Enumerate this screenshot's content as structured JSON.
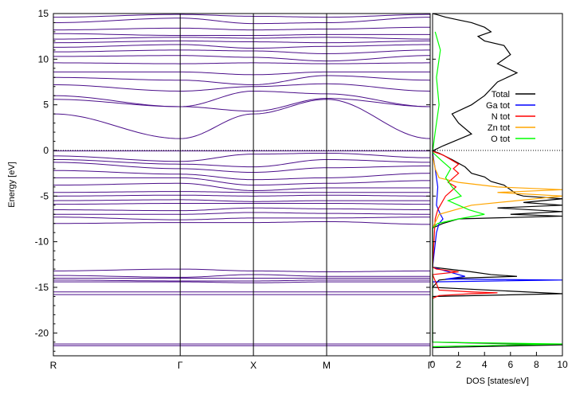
{
  "chart_data": [
    {
      "type": "line",
      "ylabel": "Energy [eV]",
      "xlabel": "",
      "ylim": [
        -22.5,
        15
      ],
      "yticks": [
        15,
        10,
        5,
        0,
        -5,
        -10,
        -15,
        -20
      ],
      "kpoints": [
        {
          "label": "R",
          "x": 0
        },
        {
          "label": "Γ",
          "x": 1.732
        },
        {
          "label": "X",
          "x": 2.732
        },
        {
          "label": "M",
          "x": 3.732
        },
        {
          "label": "Γ",
          "x": 5.146
        }
      ],
      "fermi_level": 0,
      "fermi_line_style": "dotted",
      "band_color": "#4b0f8a",
      "grid": false,
      "series": [
        {
          "x": [
            0,
            1.732,
            2.732,
            3.732,
            5.146
          ],
          "values": [
            -0.05,
            -0.05,
            -0.05,
            -0.05,
            -0.05
          ]
        },
        {
          "x": [
            0,
            1.732,
            2.732,
            3.732,
            5.146
          ],
          "values": [
            -0.6,
            -1.2,
            -0.4,
            -0.3,
            -0.8
          ]
        },
        {
          "x": [
            0,
            1.732,
            2.732,
            3.732,
            5.146
          ],
          "values": [
            -1.0,
            -1.5,
            -1.8,
            -1.0,
            -1.3
          ]
        },
        {
          "x": [
            0,
            1.732,
            2.732,
            3.732,
            5.146
          ],
          "values": [
            -1.3,
            -2.0,
            -2.4,
            -1.9,
            -1.7
          ]
        },
        {
          "x": [
            0,
            1.732,
            2.732,
            3.732,
            5.146
          ],
          "values": [
            -2.2,
            -2.6,
            -3.2,
            -3.0,
            -2.5
          ]
        },
        {
          "x": [
            0,
            1.732,
            2.732,
            3.732,
            5.146
          ],
          "values": [
            -3.0,
            -3.0,
            -3.8,
            -3.6,
            -3.3
          ]
        },
        {
          "x": [
            0,
            1.732,
            2.732,
            3.732,
            5.146
          ],
          "values": [
            -3.8,
            -3.6,
            -4.4,
            -4.1,
            -4.1
          ]
        },
        {
          "x": [
            0,
            1.732,
            2.732,
            3.732,
            5.146
          ],
          "values": [
            -4.6,
            -4.5,
            -4.6,
            -4.6,
            -4.6
          ]
        },
        {
          "x": [
            0,
            1.732,
            2.732,
            3.732,
            5.146
          ],
          "values": [
            -5.0,
            -4.9,
            -5.0,
            -4.9,
            -5.0
          ]
        },
        {
          "x": [
            0,
            1.732,
            2.732,
            3.732,
            5.146
          ],
          "values": [
            -5.5,
            -5.4,
            -5.6,
            -5.5,
            -5.5
          ]
        },
        {
          "x": [
            0,
            1.732,
            2.732,
            3.732,
            5.146
          ],
          "values": [
            -5.9,
            -5.8,
            -5.8,
            -5.8,
            -5.9
          ]
        },
        {
          "x": [
            0,
            1.732,
            2.732,
            3.732,
            5.146
          ],
          "values": [
            -6.5,
            -6.6,
            -6.3,
            -6.4,
            -6.5
          ]
        },
        {
          "x": [
            0,
            1.732,
            2.732,
            3.732,
            5.146
          ],
          "values": [
            -7.0,
            -7.0,
            -6.8,
            -6.9,
            -7.0
          ]
        },
        {
          "x": [
            0,
            1.732,
            2.732,
            3.732,
            5.146
          ],
          "values": [
            -7.3,
            -7.6,
            -7.4,
            -7.4,
            -7.3
          ]
        },
        {
          "x": [
            0,
            1.732,
            2.732,
            3.732,
            5.146
          ],
          "values": [
            -8.0,
            -7.9,
            -7.9,
            -7.8,
            -8.1
          ]
        },
        {
          "x": [
            0,
            1.732,
            2.732,
            3.732,
            5.146
          ],
          "values": [
            -13.2,
            -13.0,
            -13.2,
            -13.3,
            -13.2
          ]
        },
        {
          "x": [
            0,
            1.732,
            2.732,
            3.732,
            5.146
          ],
          "values": [
            -13.7,
            -13.9,
            -13.6,
            -13.8,
            -13.8
          ]
        },
        {
          "x": [
            0,
            1.732,
            2.732,
            3.732,
            5.146
          ],
          "values": [
            -14.0,
            -14.0,
            -14.0,
            -14.0,
            -14.0
          ]
        },
        {
          "x": [
            0,
            1.732,
            2.732,
            3.732,
            5.146
          ],
          "values": [
            -14.2,
            -14.3,
            -14.3,
            -14.2,
            -14.2
          ]
        },
        {
          "x": [
            0,
            1.732,
            2.732,
            3.732,
            5.146
          ],
          "values": [
            -14.4,
            -14.4,
            -14.5,
            -14.4,
            -14.4
          ]
        },
        {
          "x": [
            0,
            1.732,
            2.732,
            3.732,
            5.146
          ],
          "values": [
            -15.5,
            -15.5,
            -15.5,
            -15.5,
            -15.5
          ]
        },
        {
          "x": [
            0,
            1.732,
            2.732,
            3.732,
            5.146
          ],
          "values": [
            -15.8,
            -15.8,
            -15.8,
            -15.8,
            -15.8
          ]
        },
        {
          "x": [
            0,
            1.732,
            2.732,
            3.732,
            5.146
          ],
          "values": [
            -21.2,
            -21.2,
            -21.2,
            -21.2,
            -21.2
          ]
        },
        {
          "x": [
            0,
            1.732,
            2.732,
            3.732,
            5.146
          ],
          "values": [
            -21.4,
            -21.4,
            -21.4,
            -21.4,
            -21.4
          ]
        },
        {
          "x": [
            0,
            1.732,
            2.732,
            3.732,
            5.146
          ],
          "values": [
            4.0,
            1.3,
            4.0,
            5.6,
            1.3
          ]
        },
        {
          "x": [
            0,
            1.732,
            2.732,
            3.732,
            5.146
          ],
          "values": [
            5.6,
            4.8,
            4.3,
            5.7,
            4.8
          ]
        },
        {
          "x": [
            0,
            1.732,
            2.732,
            3.732,
            5.146
          ],
          "values": [
            6.0,
            4.8,
            6.5,
            6.2,
            4.8
          ]
        },
        {
          "x": [
            0,
            1.732,
            2.732,
            3.732,
            5.146
          ],
          "values": [
            7.2,
            6.5,
            7.0,
            7.3,
            6.5
          ]
        },
        {
          "x": [
            0,
            1.732,
            2.732,
            3.732,
            5.146
          ],
          "values": [
            8.0,
            7.7,
            7.2,
            8.2,
            7.7
          ]
        },
        {
          "x": [
            0,
            1.732,
            2.732,
            3.732,
            5.146
          ],
          "values": [
            8.6,
            8.6,
            8.3,
            8.6,
            8.6
          ]
        },
        {
          "x": [
            0,
            1.732,
            2.732,
            3.732,
            5.146
          ],
          "values": [
            9.6,
            9.5,
            9.6,
            9.5,
            9.6
          ]
        },
        {
          "x": [
            0,
            1.732,
            2.732,
            3.732,
            5.146
          ],
          "values": [
            10.3,
            10.4,
            10.2,
            9.8,
            10.4
          ]
        },
        {
          "x": [
            0,
            1.732,
            2.732,
            3.732,
            5.146
          ],
          "values": [
            10.8,
            11.0,
            10.9,
            10.6,
            11.0
          ]
        },
        {
          "x": [
            0,
            1.732,
            2.732,
            3.732,
            5.146
          ],
          "values": [
            11.3,
            11.6,
            11.2,
            11.4,
            11.6
          ]
        },
        {
          "x": [
            0,
            1.732,
            2.732,
            3.732,
            5.146
          ],
          "values": [
            11.8,
            12.0,
            11.9,
            11.8,
            12.0
          ]
        },
        {
          "x": [
            0,
            1.732,
            2.732,
            3.732,
            5.146
          ],
          "values": [
            12.2,
            12.4,
            12.3,
            12.4,
            12.2
          ]
        },
        {
          "x": [
            0,
            1.732,
            2.732,
            3.732,
            5.146
          ],
          "values": [
            12.8,
            12.6,
            12.6,
            12.7,
            12.7
          ]
        },
        {
          "x": [
            0,
            1.732,
            2.732,
            3.732,
            5.146
          ],
          "values": [
            13.2,
            13.4,
            13.2,
            13.3,
            13.5
          ]
        },
        {
          "x": [
            0,
            1.732,
            2.732,
            3.732,
            5.146
          ],
          "values": [
            14.0,
            14.5,
            13.9,
            14.0,
            14.6
          ]
        },
        {
          "x": [
            0,
            1.732,
            2.732,
            3.732,
            5.146
          ],
          "values": [
            14.6,
            14.9,
            14.7,
            14.6,
            14.9
          ]
        }
      ]
    },
    {
      "type": "line",
      "xlabel": "DOS [states/eV]",
      "ylabel": "",
      "xlim": [
        0,
        10
      ],
      "ylim": [
        -22.5,
        15
      ],
      "xticks": [
        0,
        2,
        4,
        6,
        8,
        10
      ],
      "legend_position": "top-right",
      "series": [
        {
          "name": "Total",
          "color": "#000000",
          "x": [
            0,
            0.5,
            1.5,
            2.5,
            3.0,
            4.0,
            4.5,
            5.5,
            6.0,
            6.5,
            7.0,
            10.0,
            7.0,
            10.0,
            5.0,
            10.0,
            6.0,
            10.0,
            2.0,
            0.8,
            0,
            0,
            0,
            0.8,
            3.0,
            2.0,
            1.5,
            3.0,
            4.0,
            5.0,
            6.5,
            5.0,
            6.0,
            5.5,
            4.0,
            3.5,
            4.5,
            4.0,
            3.0,
            2.0,
            1.0,
            0.3,
            0,
            0,
            3.0,
            4.5,
            6.5,
            2.0,
            0.5,
            0,
            10.0,
            0,
            0,
            10.0,
            0
          ],
          "y": [
            -0.05,
            -0.3,
            -1.0,
            -1.8,
            -2.5,
            -2.9,
            -3.4,
            -3.8,
            -4.3,
            -4.8,
            -5.0,
            -5.3,
            -5.7,
            -6.0,
            -6.3,
            -6.7,
            -7.0,
            -7.2,
            -7.5,
            -8.0,
            -8.5,
            -12.8,
            -0.05,
            0.5,
            1.8,
            3.0,
            4.0,
            5.0,
            6.0,
            7.5,
            8.5,
            9.5,
            10.5,
            11.5,
            12.0,
            12.5,
            13.0,
            13.5,
            14.0,
            14.3,
            14.6,
            14.9,
            15.0,
            -12.8,
            -13.3,
            -13.6,
            -13.8,
            -14.0,
            -14.2,
            -15.0,
            -15.7,
            -16.0,
            -21.0,
            -21.3,
            -21.6
          ]
        },
        {
          "name": "Ga tot",
          "color": "#0000ff",
          "x": [
            0,
            0.2,
            0.4,
            0.3,
            0.6,
            0.8,
            0.5,
            0.3,
            0,
            1.5,
            2.5,
            1.0,
            10.0,
            0
          ],
          "y": [
            -0.2,
            -2.0,
            -4.0,
            -6.0,
            -7.0,
            -7.5,
            -8.0,
            -9.0,
            -12.8,
            -13.4,
            -13.8,
            -14.1,
            -14.2,
            -14.4
          ]
        },
        {
          "name": "N tot",
          "color": "#ff0000",
          "x": [
            0,
            0.8,
            2.0,
            1.6,
            2.0,
            1.2,
            1.8,
            1.0,
            0.4,
            0.2,
            0,
            0.3,
            2.0,
            0,
            0.5,
            3.0,
            5.0,
            3.0,
            0.5,
            0
          ],
          "y": [
            -0.1,
            -0.5,
            -1.5,
            -2.0,
            -2.5,
            -3.5,
            -4.0,
            -5.0,
            -6.5,
            -7.5,
            -12.8,
            -13.0,
            -13.3,
            -13.6,
            -15.3,
            -15.5,
            -15.6,
            -15.7,
            -15.9,
            -16.2
          ]
        },
        {
          "name": "Zn tot",
          "color": "#ffa500",
          "x": [
            0,
            0.2,
            0.5,
            2.0,
            5.0,
            10.0,
            5.0,
            10.0,
            3.0,
            0.5,
            0
          ],
          "y": [
            -0.5,
            -2.0,
            -3.0,
            -3.5,
            -4.0,
            -4.3,
            -4.6,
            -5.0,
            -6.0,
            -7.0,
            -8.5
          ]
        },
        {
          "name": "O tot",
          "color": "#00ff00",
          "x": [
            0,
            0.6,
            1.4,
            1.0,
            1.5,
            2.2,
            1.2,
            2.8,
            4.0,
            2.0,
            0.4,
            0,
            0.2,
            0.5,
            0.3,
            0.6,
            0.2,
            0,
            10.0,
            0
          ],
          "y": [
            -0.2,
            -1.0,
            -2.0,
            -3.0,
            -4.0,
            -5.0,
            -5.5,
            -6.5,
            -7.0,
            -7.5,
            -8.0,
            -8.5,
            2.0,
            5.0,
            8.0,
            11.0,
            13.0,
            -21.0,
            -21.2,
            -21.5
          ]
        }
      ]
    }
  ]
}
